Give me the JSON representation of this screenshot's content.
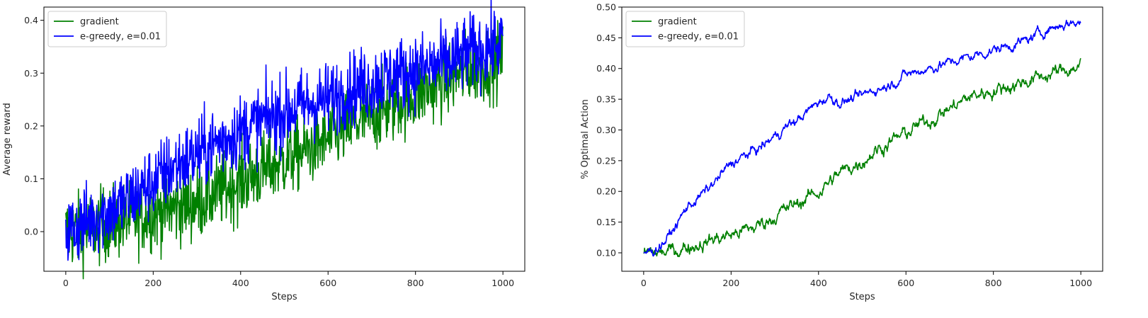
{
  "chart_data": [
    {
      "type": "line",
      "xlabel": "Steps",
      "ylabel": "Average reward",
      "xlim": [
        -50,
        1050
      ],
      "ylim": [
        -0.075,
        0.425
      ],
      "xticks": [
        0,
        200,
        400,
        600,
        800,
        1000
      ],
      "yticks": [
        0.0,
        0.1,
        0.2,
        0.3,
        0.4
      ],
      "ytick_labels": [
        "0.0",
        "0.1",
        "0.2",
        "0.3",
        "0.4"
      ],
      "legend": "top-left",
      "grid": false,
      "series": [
        {
          "name": "gradient",
          "color": "#008000",
          "x": [
            0,
            25,
            50,
            75,
            100,
            125,
            150,
            175,
            200,
            225,
            250,
            275,
            300,
            325,
            350,
            375,
            400,
            425,
            450,
            475,
            500,
            525,
            550,
            575,
            600,
            625,
            650,
            675,
            700,
            725,
            750,
            775,
            800,
            825,
            850,
            875,
            900,
            925,
            950,
            975,
            1000
          ],
          "y": [
            0.0,
            0.0,
            0.005,
            0.01,
            0.015,
            0.02,
            0.025,
            0.03,
            0.035,
            0.04,
            0.045,
            0.05,
            0.055,
            0.065,
            0.075,
            0.085,
            0.095,
            0.105,
            0.115,
            0.125,
            0.135,
            0.145,
            0.155,
            0.165,
            0.175,
            0.19,
            0.2,
            0.21,
            0.22,
            0.23,
            0.24,
            0.25,
            0.26,
            0.27,
            0.28,
            0.29,
            0.3,
            0.31,
            0.315,
            0.32,
            0.33
          ],
          "noise": 0.035
        },
        {
          "name": "e-greedy, e=0.01",
          "color": "#0000ff",
          "x": [
            0,
            25,
            50,
            75,
            100,
            125,
            150,
            175,
            200,
            225,
            250,
            275,
            300,
            325,
            350,
            375,
            400,
            425,
            450,
            475,
            500,
            525,
            550,
            575,
            600,
            625,
            650,
            675,
            700,
            725,
            750,
            775,
            800,
            825,
            850,
            875,
            900,
            925,
            950,
            975,
            1000
          ],
          "y": [
            0.0,
            0.01,
            0.02,
            0.03,
            0.04,
            0.05,
            0.065,
            0.08,
            0.095,
            0.11,
            0.125,
            0.135,
            0.145,
            0.16,
            0.17,
            0.18,
            0.19,
            0.2,
            0.21,
            0.22,
            0.225,
            0.235,
            0.24,
            0.245,
            0.25,
            0.26,
            0.27,
            0.275,
            0.28,
            0.29,
            0.295,
            0.3,
            0.305,
            0.31,
            0.315,
            0.32,
            0.33,
            0.34,
            0.345,
            0.35,
            0.36
          ],
          "noise": 0.035
        }
      ]
    },
    {
      "type": "line",
      "xlabel": "Steps",
      "ylabel": "% Optimal Action",
      "xlim": [
        -50,
        1050
      ],
      "ylim": [
        0.07,
        0.5
      ],
      "xticks": [
        0,
        200,
        400,
        600,
        800,
        1000
      ],
      "yticks": [
        0.1,
        0.15,
        0.2,
        0.25,
        0.3,
        0.35,
        0.4,
        0.45,
        0.5
      ],
      "ytick_labels": [
        "0.10",
        "0.15",
        "0.20",
        "0.25",
        "0.30",
        "0.35",
        "0.40",
        "0.45",
        "0.50"
      ],
      "legend": "top-left",
      "grid": false,
      "series": [
        {
          "name": "gradient",
          "color": "#008000",
          "x": [
            0,
            25,
            50,
            75,
            100,
            125,
            150,
            175,
            200,
            225,
            250,
            275,
            300,
            325,
            350,
            375,
            400,
            425,
            450,
            475,
            500,
            525,
            550,
            575,
            600,
            625,
            650,
            675,
            700,
            725,
            750,
            775,
            800,
            825,
            850,
            875,
            900,
            925,
            950,
            975,
            1000
          ],
          "y": [
            0.1,
            0.1,
            0.1,
            0.105,
            0.11,
            0.115,
            0.12,
            0.125,
            0.13,
            0.135,
            0.14,
            0.15,
            0.16,
            0.17,
            0.18,
            0.19,
            0.2,
            0.215,
            0.23,
            0.24,
            0.25,
            0.265,
            0.275,
            0.285,
            0.295,
            0.305,
            0.315,
            0.325,
            0.335,
            0.345,
            0.355,
            0.36,
            0.365,
            0.37,
            0.375,
            0.38,
            0.385,
            0.39,
            0.395,
            0.4,
            0.405
          ],
          "noise": 0.007
        },
        {
          "name": "e-greedy, e=0.01",
          "color": "#0000ff",
          "x": [
            0,
            25,
            50,
            75,
            100,
            125,
            150,
            175,
            200,
            225,
            250,
            275,
            300,
            325,
            350,
            375,
            400,
            425,
            450,
            475,
            500,
            525,
            550,
            575,
            600,
            625,
            650,
            675,
            700,
            725,
            750,
            775,
            800,
            825,
            850,
            875,
            900,
            925,
            950,
            975,
            1000
          ],
          "y": [
            0.1,
            0.105,
            0.12,
            0.145,
            0.175,
            0.19,
            0.205,
            0.225,
            0.245,
            0.255,
            0.265,
            0.275,
            0.29,
            0.305,
            0.315,
            0.33,
            0.345,
            0.355,
            0.345,
            0.35,
            0.355,
            0.365,
            0.37,
            0.38,
            0.39,
            0.395,
            0.4,
            0.405,
            0.41,
            0.415,
            0.42,
            0.425,
            0.43,
            0.435,
            0.44,
            0.445,
            0.455,
            0.465,
            0.47,
            0.475,
            0.475
          ],
          "noise": 0.005
        }
      ]
    }
  ]
}
